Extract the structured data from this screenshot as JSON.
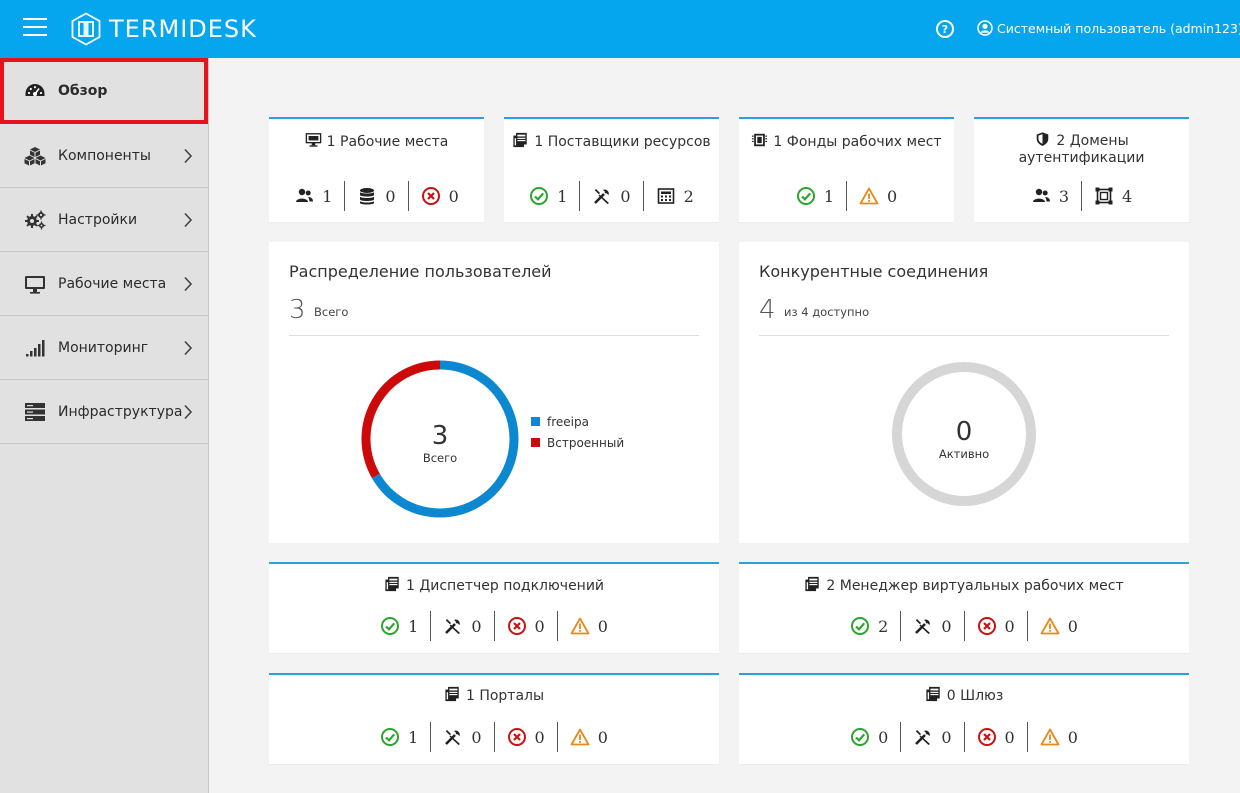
{
  "header": {
    "brand": "TERMIDESK",
    "user": "Системный пользователь (admin123)",
    "help_icon": "question-circle-icon",
    "user_icon": "user-circle-icon"
  },
  "sidebar": {
    "items": [
      {
        "label": "Обзор",
        "icon": "dashboard-gauge-icon",
        "active": true
      },
      {
        "label": "Компоненты",
        "icon": "cubes-icon"
      },
      {
        "label": "Настройки",
        "icon": "gears-icon"
      },
      {
        "label": "Рабочие места",
        "icon": "monitor-icon"
      },
      {
        "label": "Мониторинг",
        "icon": "signal-bars-icon"
      },
      {
        "label": "Инфраструктура",
        "icon": "server-stack-icon"
      }
    ]
  },
  "top_cards": [
    {
      "count": "1",
      "title": "Рабочие места",
      "icon": "desktop-icon",
      "stats": [
        {
          "icon": "users-icon",
          "value": "1"
        },
        {
          "icon": "database-icon",
          "value": "0"
        },
        {
          "icon": "error-circle-icon",
          "value": "0"
        }
      ]
    },
    {
      "count": "1",
      "title": "Поставщики ресурсов",
      "icon": "server-doc-icon",
      "stats": [
        {
          "icon": "ok-circle-icon",
          "value": "1"
        },
        {
          "icon": "tools-icon",
          "value": "0"
        },
        {
          "icon": "calculator-icon",
          "value": "2"
        }
      ]
    },
    {
      "count": "1",
      "title": "Фонды рабочих мест",
      "icon": "chip-icon",
      "stats": [
        {
          "icon": "ok-circle-icon",
          "value": "1"
        },
        {
          "icon": "warning-icon",
          "value": "0"
        }
      ]
    },
    {
      "count": "2",
      "title": "Домены",
      "title2": "аутентификации",
      "icon": "shield-icon",
      "stats": [
        {
          "icon": "users-icon",
          "value": "3"
        },
        {
          "icon": "object-group-icon",
          "value": "4"
        }
      ]
    }
  ],
  "users_panel": {
    "title": "Распределение пользователей",
    "total": "3",
    "total_label": "Всего",
    "center_value": "3",
    "center_label": "Всего",
    "segments": [
      {
        "name": "freeipa",
        "value": 2,
        "color": "#0c88d0"
      },
      {
        "name": "Встроенный",
        "value": 1,
        "color": "#cc0a0a"
      }
    ]
  },
  "connections_panel": {
    "title": "Конкурентные соединения",
    "total": "4",
    "total_label": "из 4 доступно",
    "center_value": "0",
    "center_label": "Активно",
    "ring_color": "#d6d6d6"
  },
  "status_cards": [
    {
      "count": "1",
      "title": "Диспетчер подключений",
      "stats": [
        "1",
        "0",
        "0",
        "0"
      ]
    },
    {
      "count": "2",
      "title": "Менеджер виртуальных рабочих мест",
      "stats": [
        "2",
        "0",
        "0",
        "0"
      ]
    },
    {
      "count": "1",
      "title": "Порталы",
      "stats": [
        "1",
        "0",
        "0",
        "0"
      ]
    },
    {
      "count": "0",
      "title": "Шлюз",
      "stats": [
        "0",
        "0",
        "0",
        "0"
      ]
    }
  ],
  "status_icons": [
    "ok-circle-icon",
    "tools-icon",
    "error-circle-icon",
    "warning-icon"
  ],
  "colors": {
    "topbar": "#06a6ef",
    "accent": "#2e9fd8",
    "ok": "#2ba52b",
    "error": "#cc1111",
    "warning": "#e8891a",
    "active_border": "#e8111c"
  }
}
